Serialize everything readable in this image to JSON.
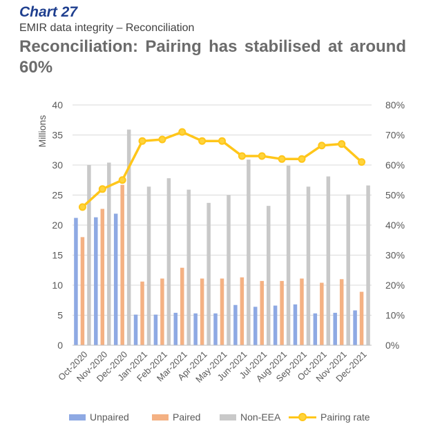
{
  "header": {
    "chart_number": "Chart 27",
    "subtitle": "EMIR data integrity – Reconciliation",
    "title": "Reconciliation: Pairing has stabilised at around 60%"
  },
  "colors": {
    "unpaired": "#8ea9e3",
    "paired": "#f4b183",
    "non_eea": "#c9c9c9",
    "pairing_rate": "#ffc61a",
    "grid": "#d9d9d9"
  },
  "chart_data": {
    "type": "bar",
    "categories": [
      "Oct-2020",
      "Nov-2020",
      "Dec-2020",
      "Jan-2021",
      "Feb-2021",
      "Mar-2021",
      "Apr-2021",
      "May-2021",
      "Jun-2021",
      "Jul-2021",
      "Aug-2021",
      "Sep-2021",
      "Oct-2021",
      "Nov-2021",
      "Dec-2021"
    ],
    "ylabel": "Millions",
    "ylim": [
      0,
      40
    ],
    "y_ticks": [
      "0",
      "5",
      "10",
      "15",
      "20",
      "25",
      "30",
      "35",
      "40"
    ],
    "y2lim": [
      0,
      80
    ],
    "y2_ticks": [
      "0%",
      "10%",
      "20%",
      "30%",
      "40%",
      "50%",
      "60%",
      "70%",
      "80%"
    ],
    "grid": "horizontal",
    "legend_position": "bottom",
    "series": [
      {
        "name": "Unpaired",
        "type": "bar",
        "axis": "left",
        "values": [
          21.2,
          21.3,
          21.9,
          5.1,
          5.1,
          5.4,
          5.3,
          5.3,
          6.7,
          6.4,
          6.6,
          6.8,
          5.3,
          5.4,
          5.8
        ]
      },
      {
        "name": "Paired",
        "type": "bar",
        "axis": "left",
        "values": [
          18.0,
          22.7,
          26.7,
          10.6,
          11.1,
          12.9,
          11.1,
          11.1,
          11.3,
          10.7,
          10.7,
          11.1,
          10.4,
          11.0,
          8.9
        ]
      },
      {
        "name": "Non-EEA",
        "type": "bar",
        "axis": "left",
        "values": [
          30.0,
          30.4,
          35.9,
          26.4,
          27.8,
          25.9,
          23.7,
          25.0,
          30.9,
          23.2,
          29.9,
          26.4,
          28.1,
          25.1,
          26.6
        ]
      },
      {
        "name": "Pairing rate",
        "type": "line",
        "axis": "right",
        "values": [
          46,
          52,
          55,
          68,
          68.5,
          71,
          68,
          68,
          63,
          63,
          62,
          62,
          66.5,
          67,
          61
        ]
      }
    ]
  }
}
